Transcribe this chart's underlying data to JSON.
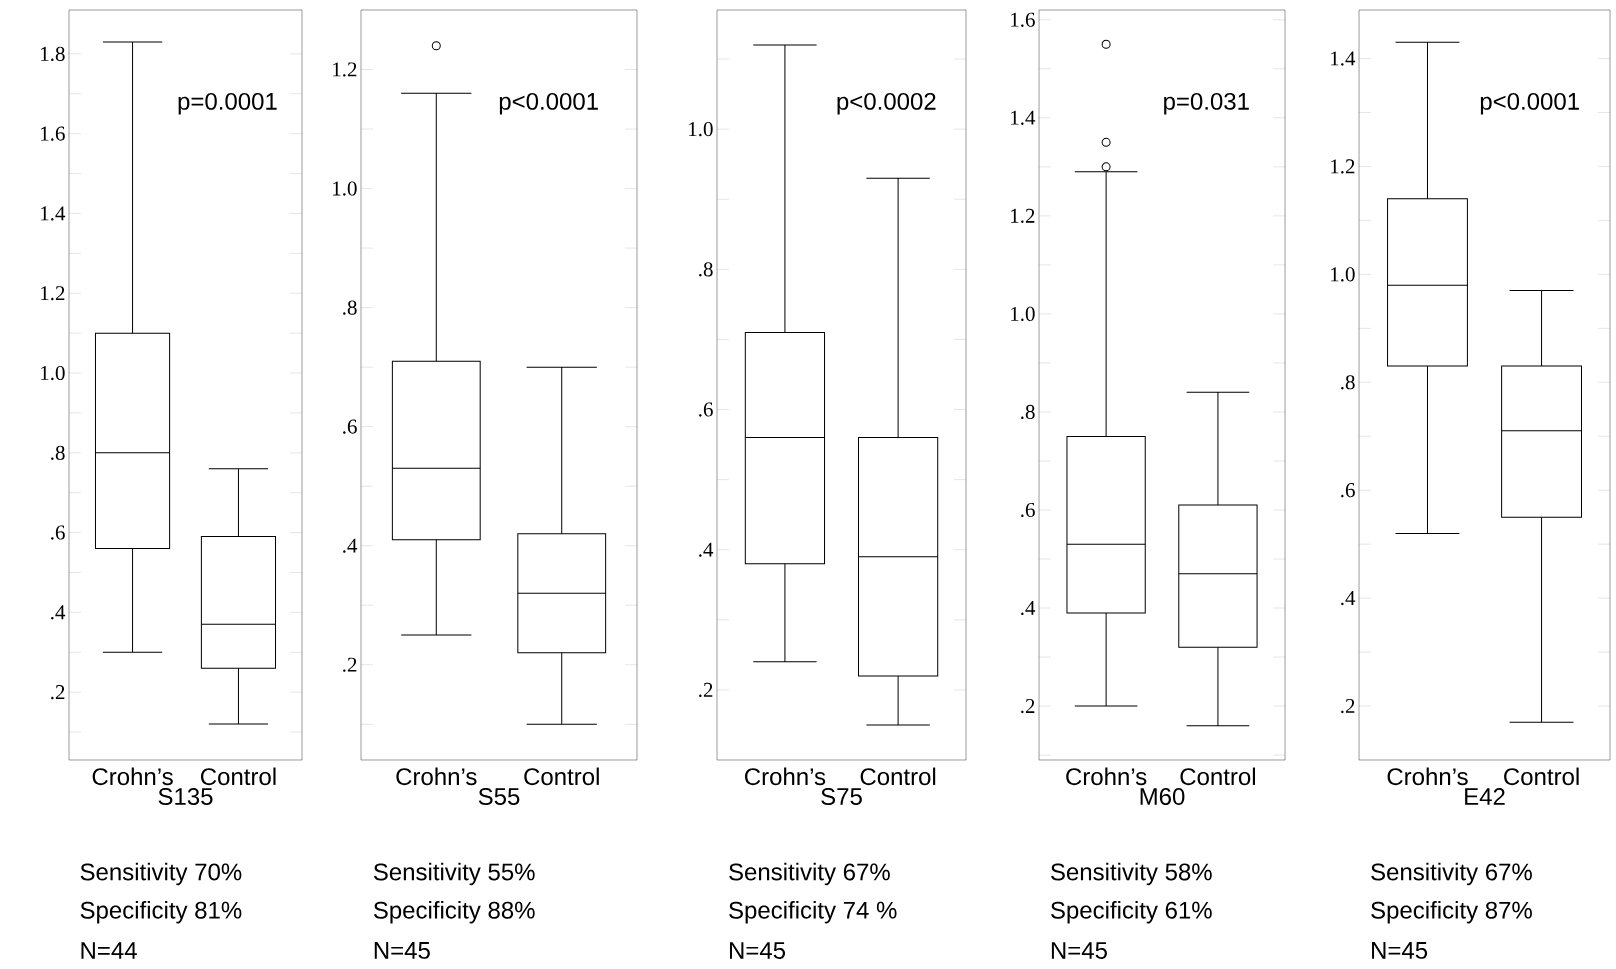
{
  "chart_data": [
    {
      "type": "box",
      "categories": [
        "Crohn’s",
        "Control"
      ],
      "xlabel": "S135",
      "ylim": [
        0.03,
        1.91
      ],
      "yticks": [
        {
          "value": 0.1,
          "label": null
        },
        {
          "value": 0.2,
          "label": ".2"
        },
        {
          "value": 0.3,
          "label": null
        },
        {
          "value": 0.4,
          "label": ".4"
        },
        {
          "value": 0.5,
          "label": null
        },
        {
          "value": 0.6,
          "label": ".6"
        },
        {
          "value": 0.7,
          "label": null
        },
        {
          "value": 0.8,
          "label": ".8"
        },
        {
          "value": 0.9,
          "label": null
        },
        {
          "value": 1.0,
          "label": "1.0"
        },
        {
          "value": 1.1,
          "label": null
        },
        {
          "value": 1.2,
          "label": "1.2"
        },
        {
          "value": 1.3,
          "label": null
        },
        {
          "value": 1.4,
          "label": "1.4"
        },
        {
          "value": 1.5,
          "label": null
        },
        {
          "value": 1.6,
          "label": "1.6"
        },
        {
          "value": 1.7,
          "label": null
        },
        {
          "value": 1.8,
          "label": "1.8"
        }
      ],
      "boxes": [
        {
          "low": 0.3,
          "q1": 0.56,
          "median": 0.8,
          "q3": 1.1,
          "high": 1.83
        },
        {
          "low": 0.12,
          "q1": 0.26,
          "median": 0.37,
          "q3": 0.59,
          "high": 0.76
        }
      ],
      "annotations": [
        "p=0.0001",
        "Sensitivity 70%",
        "Specificity 81%",
        "N=44"
      ]
    },
    {
      "type": "box",
      "categories": [
        "Crohn’s",
        "Control"
      ],
      "xlabel": "S55",
      "ylim": [
        0.04,
        1.3
      ],
      "yticks": [
        {
          "value": 0.1,
          "label": null
        },
        {
          "value": 0.2,
          "label": ".2"
        },
        {
          "value": 0.3,
          "label": null
        },
        {
          "value": 0.4,
          "label": ".4"
        },
        {
          "value": 0.5,
          "label": null
        },
        {
          "value": 0.6,
          "label": ".6"
        },
        {
          "value": 0.7,
          "label": null
        },
        {
          "value": 0.8,
          "label": ".8"
        },
        {
          "value": 0.9,
          "label": null
        },
        {
          "value": 1.0,
          "label": "1.0"
        },
        {
          "value": 1.1,
          "label": null
        },
        {
          "value": 1.2,
          "label": "1.2"
        }
      ],
      "boxes": [
        {
          "low": 0.25,
          "q1": 0.41,
          "median": 0.53,
          "q3": 0.71,
          "high": 1.16,
          "outliers": [
            1.24
          ]
        },
        {
          "low": 0.1,
          "q1": 0.22,
          "median": 0.32,
          "q3": 0.42,
          "high": 0.7
        }
      ],
      "annotations": [
        "p<0.0001",
        "Sensitivity 55%",
        "Specificity 88%",
        "N=45"
      ]
    },
    {
      "type": "box",
      "categories": [
        "Crohn’s",
        "Control"
      ],
      "xlabel": "S75",
      "ylim": [
        0.1,
        1.17
      ],
      "yticks": [
        {
          "value": 0.2,
          "label": ".2"
        },
        {
          "value": 0.3,
          "label": null
        },
        {
          "value": 0.4,
          "label": ".4"
        },
        {
          "value": 0.5,
          "label": null
        },
        {
          "value": 0.6,
          "label": ".6"
        },
        {
          "value": 0.7,
          "label": null
        },
        {
          "value": 0.8,
          "label": ".8"
        },
        {
          "value": 0.9,
          "label": null
        },
        {
          "value": 1.0,
          "label": "1.0"
        },
        {
          "value": 1.1,
          "label": null
        }
      ],
      "boxes": [
        {
          "low": 0.24,
          "q1": 0.38,
          "median": 0.56,
          "q3": 0.71,
          "high": 1.12
        },
        {
          "low": 0.15,
          "q1": 0.22,
          "median": 0.39,
          "q3": 0.56,
          "high": 0.93
        }
      ],
      "annotations": [
        "p<0.0002",
        "Sensitivity 67%",
        "Specificity 74 %",
        "N=45"
      ]
    },
    {
      "type": "box",
      "categories": [
        "Crohn’s",
        "Control"
      ],
      "xlabel": "M60",
      "ylim": [
        0.09,
        1.62
      ],
      "yticks": [
        {
          "value": 0.1,
          "label": null
        },
        {
          "value": 0.2,
          "label": ".2"
        },
        {
          "value": 0.3,
          "label": null
        },
        {
          "value": 0.4,
          "label": ".4"
        },
        {
          "value": 0.5,
          "label": null
        },
        {
          "value": 0.6,
          "label": ".6"
        },
        {
          "value": 0.7,
          "label": null
        },
        {
          "value": 0.8,
          "label": ".8"
        },
        {
          "value": 0.9,
          "label": null
        },
        {
          "value": 1.0,
          "label": "1.0"
        },
        {
          "value": 1.1,
          "label": null
        },
        {
          "value": 1.2,
          "label": "1.2"
        },
        {
          "value": 1.3,
          "label": null
        },
        {
          "value": 1.4,
          "label": "1.4"
        },
        {
          "value": 1.5,
          "label": null
        },
        {
          "value": 1.6,
          "label": "1.6"
        }
      ],
      "boxes": [
        {
          "low": 0.2,
          "q1": 0.39,
          "median": 0.53,
          "q3": 0.75,
          "high": 1.29,
          "outliers": [
            1.3,
            1.35,
            1.55
          ]
        },
        {
          "low": 0.16,
          "q1": 0.32,
          "median": 0.47,
          "q3": 0.61,
          "high": 0.84
        }
      ],
      "annotations": [
        "p=0.031",
        "Sensitivity 58%",
        "Specificity 61%",
        "N=45"
      ]
    },
    {
      "type": "box",
      "categories": [
        "Crohn’s",
        "Control"
      ],
      "xlabel": "E42",
      "ylim": [
        0.1,
        1.49
      ],
      "yticks": [
        {
          "value": 0.2,
          "label": ".2"
        },
        {
          "value": 0.3,
          "label": null
        },
        {
          "value": 0.4,
          "label": ".4"
        },
        {
          "value": 0.5,
          "label": null
        },
        {
          "value": 0.6,
          "label": ".6"
        },
        {
          "value": 0.7,
          "label": null
        },
        {
          "value": 0.8,
          "label": ".8"
        },
        {
          "value": 0.9,
          "label": null
        },
        {
          "value": 1.0,
          "label": "1.0"
        },
        {
          "value": 1.1,
          "label": null
        },
        {
          "value": 1.2,
          "label": "1.2"
        },
        {
          "value": 1.3,
          "label": null
        },
        {
          "value": 1.4,
          "label": "1.4"
        }
      ],
      "boxes": [
        {
          "low": 0.52,
          "q1": 0.83,
          "median": 0.98,
          "q3": 1.14,
          "high": 1.43
        },
        {
          "low": 0.17,
          "q1": 0.55,
          "median": 0.71,
          "q3": 0.83,
          "high": 0.97
        }
      ],
      "annotations": [
        "p<0.0001",
        "Sensitivity 67%",
        "Specificity 87%",
        "N=45"
      ]
    }
  ]
}
